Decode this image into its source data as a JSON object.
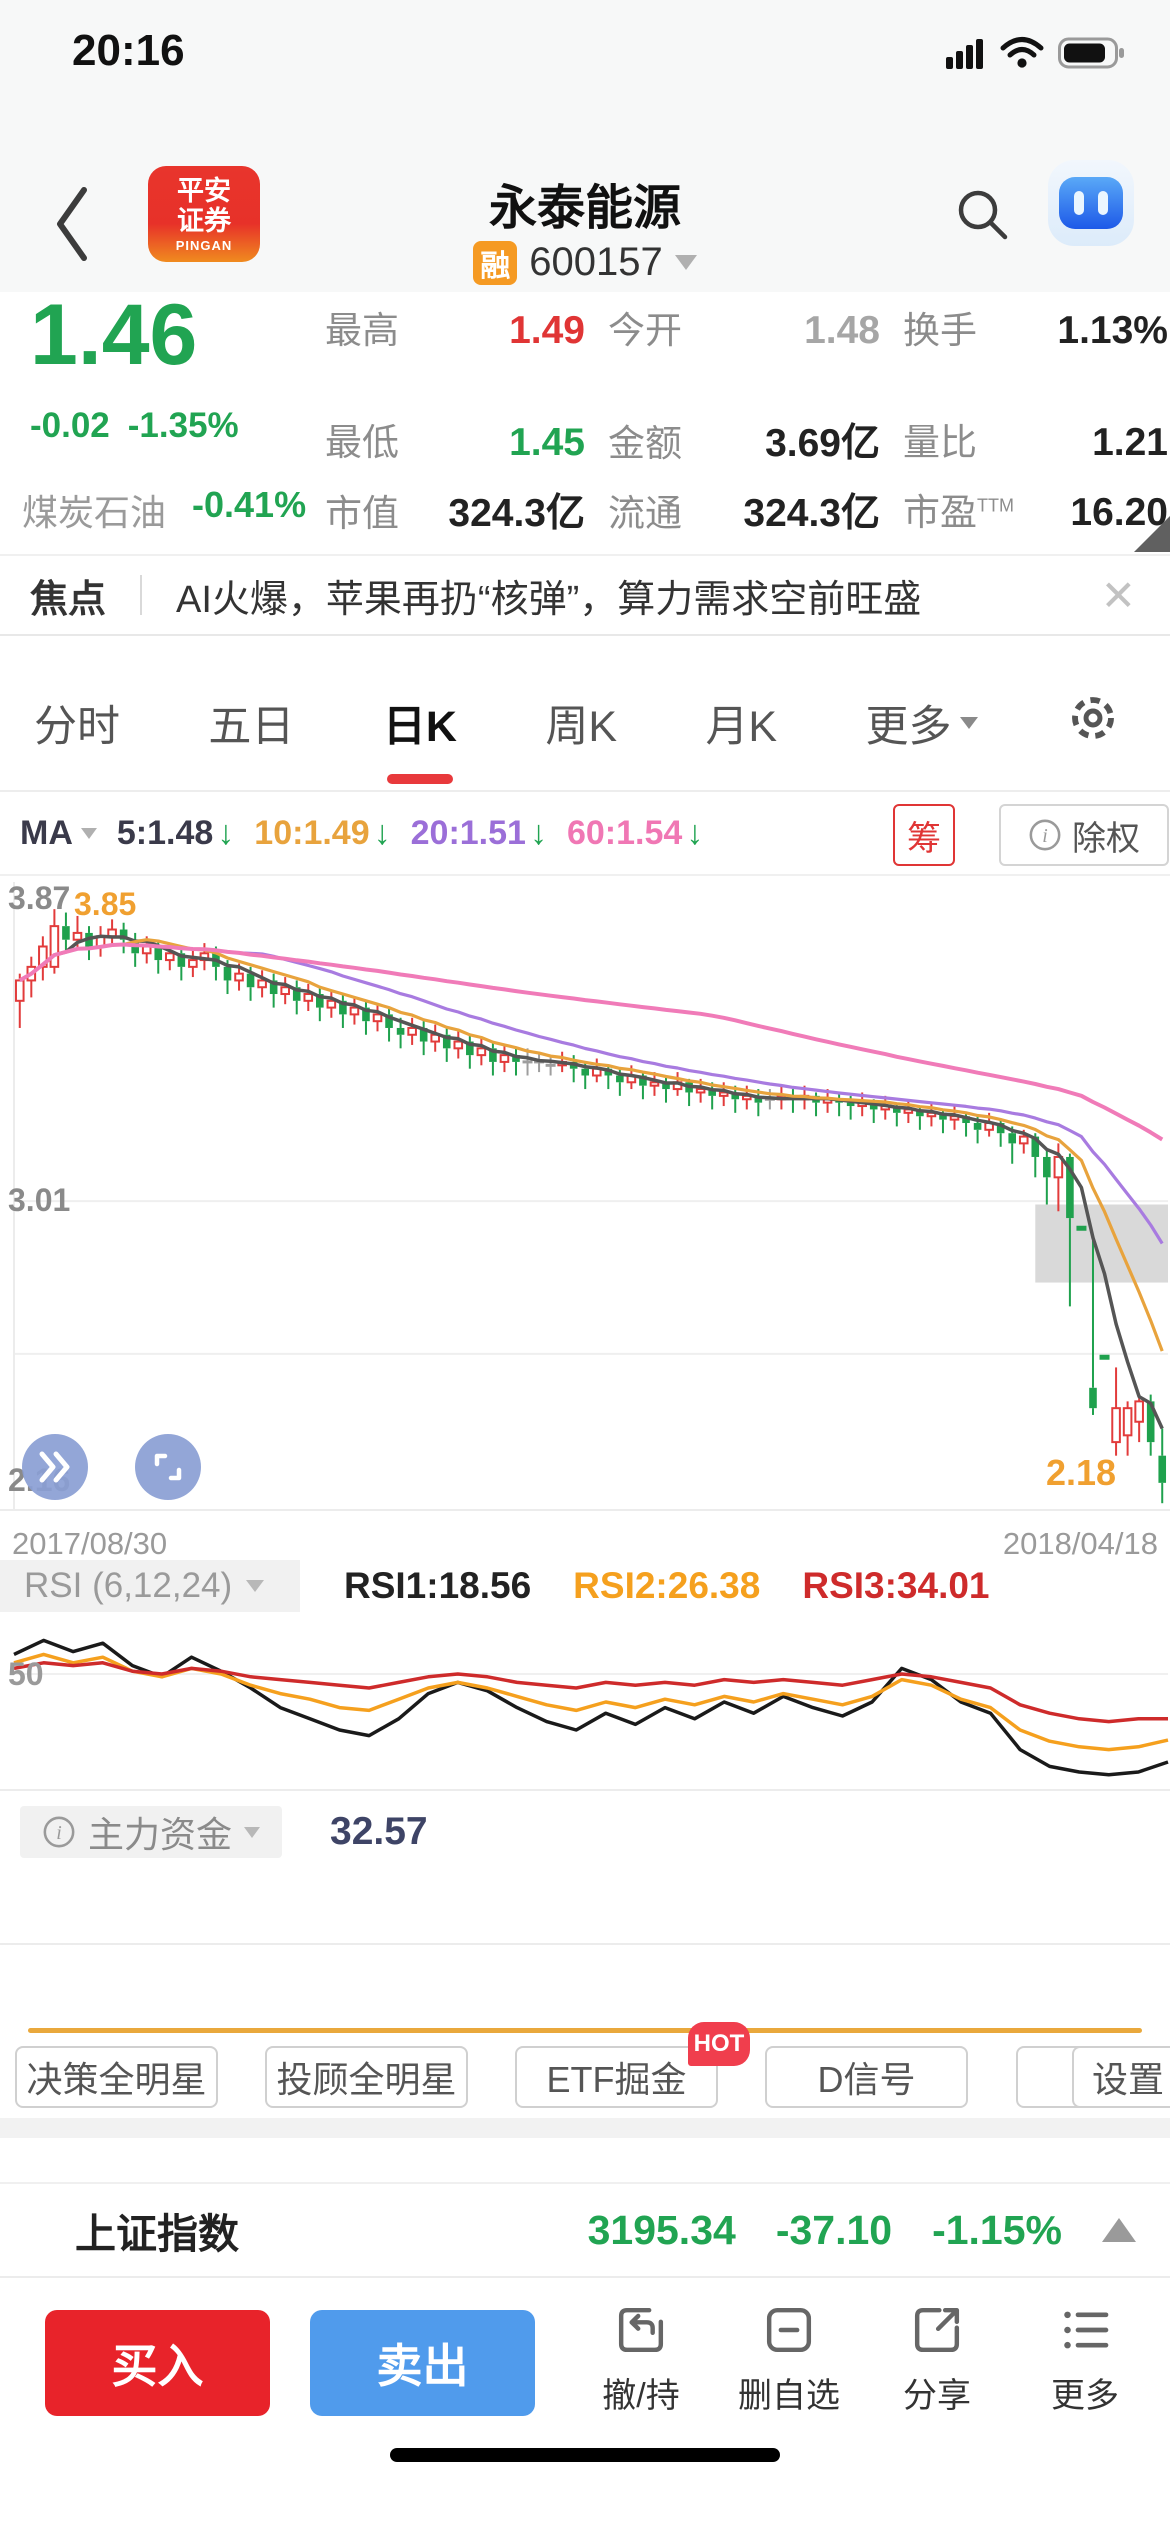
{
  "status_bar": {
    "time": "20:16"
  },
  "header": {
    "logo_line1": "平安",
    "logo_line2": "证券",
    "logo_sub": "PINGAN",
    "title": "永泰能源",
    "margin_badge": "融",
    "code": "600157"
  },
  "quote": {
    "price": "1.46",
    "change": "-0.02",
    "change_pct": "-1.35%",
    "price_color": "#21a452",
    "stats": [
      {
        "label": "最高",
        "value": "1.49",
        "color": "#e03535"
      },
      {
        "label": "今开",
        "value": "1.48",
        "color": "#a6a6a6"
      },
      {
        "label": "换手",
        "value": "1.13%",
        "color": "#222222"
      },
      {
        "label": "最低",
        "value": "1.45",
        "color": "#21a452"
      },
      {
        "label": "金额",
        "value": "3.69亿",
        "color": "#222222"
      },
      {
        "label": "量比",
        "value": "1.21",
        "color": "#222222"
      }
    ],
    "sector": {
      "name": "煤炭石油",
      "change": "-0.41%"
    },
    "row3": [
      {
        "label": "市值",
        "value": "324.3亿"
      },
      {
        "label": "流通",
        "value": "324.3亿"
      },
      {
        "label": "市盈",
        "sup": "TTM",
        "value": "16.20"
      }
    ]
  },
  "news": {
    "tag": "焦点",
    "headline": "AI火爆，苹果再扔“核弹”，算力需求空前旺盛",
    "close_icon": "✕"
  },
  "tabs": {
    "items": [
      "分时",
      "五日",
      "日K",
      "周K",
      "月K"
    ],
    "active": "日K",
    "more_label": "更多"
  },
  "ma_bar": {
    "label": "MA",
    "items": [
      {
        "text": "5:1.48",
        "color": "#3a3a4a"
      },
      {
        "text": "10:1.49",
        "color": "#e8a33d"
      },
      {
        "text": "20:1.51",
        "color": "#9b6fd8"
      },
      {
        "text": "60:1.54",
        "color": "#f077b4"
      }
    ],
    "down_arrow": "↓",
    "chip_label": "筹",
    "exright_label": "除权"
  },
  "chart_data": {
    "type": "candlestick",
    "title": "永泰能源 日K",
    "x_range": [
      "2017/08/30",
      "2018/04/18"
    ],
    "ylim": [
      2.1,
      3.95
    ],
    "gridlines": [
      3.01,
      2.56
    ],
    "y_labels": {
      "high": "3.87",
      "peak": "3.85",
      "mid": "3.01",
      "low": "2.16",
      "last": "2.18"
    },
    "colors": {
      "up": "#e23b3b",
      "down": "#1fa14d",
      "doji": "#9e9e9e"
    },
    "ma": [
      {
        "period": 5,
        "color": "#555555",
        "width": 3.5
      },
      {
        "period": 10,
        "color": "#e8a33d",
        "width": 3.2
      },
      {
        "period": 20,
        "color": "#a87be0",
        "width": 3.2
      },
      {
        "period": 60,
        "color": "#f07bb8",
        "width": 4
      }
    ],
    "halt_box": {
      "from_index": 88.5,
      "price_top": 3.0,
      "price_bottom": 2.77
    },
    "candles": [
      [
        3.6,
        3.68,
        3.52,
        3.66
      ],
      [
        3.66,
        3.73,
        3.61,
        3.7
      ],
      [
        3.7,
        3.79,
        3.66,
        3.76
      ],
      [
        3.7,
        3.87,
        3.68,
        3.82
      ],
      [
        3.82,
        3.86,
        3.74,
        3.78
      ],
      [
        3.78,
        3.85,
        3.75,
        3.8
      ],
      [
        3.8,
        3.82,
        3.72,
        3.76
      ],
      [
        3.76,
        3.82,
        3.73,
        3.79
      ],
      [
        3.79,
        3.84,
        3.76,
        3.81
      ],
      [
        3.81,
        3.83,
        3.74,
        3.78
      ],
      [
        3.78,
        3.8,
        3.7,
        3.74
      ],
      [
        3.74,
        3.79,
        3.71,
        3.76
      ],
      [
        3.76,
        3.78,
        3.68,
        3.72
      ],
      [
        3.72,
        3.77,
        3.69,
        3.74
      ],
      [
        3.74,
        3.76,
        3.66,
        3.7
      ],
      [
        3.7,
        3.75,
        3.67,
        3.72
      ],
      [
        3.72,
        3.77,
        3.69,
        3.74
      ],
      [
        3.74,
        3.76,
        3.66,
        3.7
      ],
      [
        3.7,
        3.72,
        3.62,
        3.66
      ],
      [
        3.66,
        3.71,
        3.63,
        3.68
      ],
      [
        3.68,
        3.7,
        3.6,
        3.64
      ],
      [
        3.64,
        3.69,
        3.61,
        3.66
      ],
      [
        3.66,
        3.68,
        3.58,
        3.62
      ],
      [
        3.62,
        3.67,
        3.59,
        3.64
      ],
      [
        3.64,
        3.66,
        3.56,
        3.6
      ],
      [
        3.6,
        3.65,
        3.57,
        3.62
      ],
      [
        3.62,
        3.64,
        3.54,
        3.58
      ],
      [
        3.58,
        3.63,
        3.55,
        3.6
      ],
      [
        3.6,
        3.62,
        3.52,
        3.56
      ],
      [
        3.56,
        3.61,
        3.53,
        3.58
      ],
      [
        3.58,
        3.6,
        3.5,
        3.54
      ],
      [
        3.54,
        3.59,
        3.51,
        3.56
      ],
      [
        3.56,
        3.58,
        3.48,
        3.52
      ],
      [
        3.52,
        3.55,
        3.46,
        3.5
      ],
      [
        3.5,
        3.55,
        3.47,
        3.52
      ],
      [
        3.52,
        3.54,
        3.44,
        3.48
      ],
      [
        3.48,
        3.53,
        3.45,
        3.5
      ],
      [
        3.5,
        3.52,
        3.42,
        3.46
      ],
      [
        3.46,
        3.51,
        3.43,
        3.48
      ],
      [
        3.48,
        3.5,
        3.4,
        3.44
      ],
      [
        3.44,
        3.49,
        3.41,
        3.46
      ],
      [
        3.46,
        3.48,
        3.38,
        3.42
      ],
      [
        3.42,
        3.47,
        3.39,
        3.44
      ],
      [
        3.44,
        3.46,
        3.38,
        3.42
      ],
      [
        3.42,
        3.46,
        3.38,
        3.42
      ],
      [
        3.42,
        3.45,
        3.39,
        3.42
      ],
      [
        3.41,
        3.44,
        3.38,
        3.41
      ],
      [
        3.41,
        3.45,
        3.39,
        3.42
      ],
      [
        3.42,
        3.44,
        3.36,
        3.4
      ],
      [
        3.4,
        3.42,
        3.34,
        3.38
      ],
      [
        3.38,
        3.43,
        3.36,
        3.4
      ],
      [
        3.4,
        3.41,
        3.34,
        3.38
      ],
      [
        3.38,
        3.4,
        3.32,
        3.36
      ],
      [
        3.36,
        3.41,
        3.34,
        3.38
      ],
      [
        3.38,
        3.39,
        3.31,
        3.35
      ],
      [
        3.35,
        3.39,
        3.32,
        3.36
      ],
      [
        3.36,
        3.38,
        3.3,
        3.34
      ],
      [
        3.34,
        3.39,
        3.32,
        3.36
      ],
      [
        3.36,
        3.37,
        3.29,
        3.33
      ],
      [
        3.33,
        3.37,
        3.3,
        3.34
      ],
      [
        3.34,
        3.36,
        3.28,
        3.32
      ],
      [
        3.32,
        3.36,
        3.29,
        3.33
      ],
      [
        3.33,
        3.35,
        3.27,
        3.31
      ],
      [
        3.31,
        3.35,
        3.28,
        3.32
      ],
      [
        3.32,
        3.34,
        3.26,
        3.3
      ],
      [
        3.31,
        3.34,
        3.28,
        3.31
      ],
      [
        3.31,
        3.35,
        3.28,
        3.32
      ],
      [
        3.32,
        3.34,
        3.27,
        3.31
      ],
      [
        3.31,
        3.35,
        3.28,
        3.32
      ],
      [
        3.32,
        3.33,
        3.26,
        3.3
      ],
      [
        3.3,
        3.34,
        3.27,
        3.31
      ],
      [
        3.31,
        3.33,
        3.26,
        3.3
      ],
      [
        3.3,
        3.32,
        3.25,
        3.29
      ],
      [
        3.29,
        3.33,
        3.26,
        3.3
      ],
      [
        3.3,
        3.31,
        3.24,
        3.28
      ],
      [
        3.28,
        3.32,
        3.25,
        3.29
      ],
      [
        3.29,
        3.3,
        3.23,
        3.27
      ],
      [
        3.27,
        3.31,
        3.24,
        3.28
      ],
      [
        3.28,
        3.29,
        3.22,
        3.26
      ],
      [
        3.26,
        3.3,
        3.23,
        3.27
      ],
      [
        3.27,
        3.28,
        3.21,
        3.25
      ],
      [
        3.25,
        3.29,
        3.22,
        3.26
      ],
      [
        3.26,
        3.27,
        3.2,
        3.24
      ],
      [
        3.24,
        3.26,
        3.18,
        3.22
      ],
      [
        3.22,
        3.27,
        3.2,
        3.24
      ],
      [
        3.24,
        3.25,
        3.17,
        3.21
      ],
      [
        3.21,
        3.23,
        3.12,
        3.18
      ],
      [
        3.18,
        3.22,
        3.15,
        3.2
      ],
      [
        3.2,
        3.21,
        3.08,
        3.14
      ],
      [
        3.14,
        3.16,
        3.0,
        3.08
      ],
      [
        3.08,
        3.18,
        2.98,
        3.14
      ],
      [
        3.14,
        3.15,
        2.7,
        2.96
      ],
      [
        2.93,
        2.93,
        2.93,
        2.93
      ],
      [
        2.46,
        2.9,
        2.38,
        2.4
      ],
      [
        2.55,
        2.55,
        2.55,
        2.55
      ],
      [
        2.3,
        2.52,
        2.26,
        2.4
      ],
      [
        2.32,
        2.42,
        2.26,
        2.4
      ],
      [
        2.36,
        2.44,
        2.3,
        2.42
      ],
      [
        2.42,
        2.44,
        2.26,
        2.3
      ],
      [
        2.26,
        2.34,
        2.12,
        2.18
      ]
    ],
    "rsi_chart": {
      "ylim": [
        10,
        70
      ],
      "gridline": 50,
      "series": [
        {
          "name": "RSI1",
          "color": "#1a1a1a",
          "values": [
            57,
            62,
            58,
            61,
            53,
            49,
            56,
            51,
            45,
            38,
            34,
            30,
            28,
            34,
            43,
            47,
            44,
            38,
            33,
            30,
            36,
            32,
            38,
            34,
            40,
            36,
            42,
            38,
            35,
            40,
            52,
            48,
            40,
            36,
            23,
            17,
            15,
            14,
            15,
            18.56
          ]
        },
        {
          "name": "RSI2",
          "color": "#f5a01e",
          "values": [
            54,
            57,
            54,
            56,
            51,
            49,
            52,
            50,
            46,
            43,
            41,
            38,
            37,
            41,
            45,
            47,
            45,
            42,
            39,
            37,
            40,
            38,
            41,
            39,
            42,
            40,
            43,
            41,
            39,
            42,
            48,
            46,
            41,
            38,
            30,
            26,
            24,
            23,
            24,
            26.38
          ]
        },
        {
          "name": "RSI3",
          "color": "#ce2b2b",
          "values": [
            52,
            54,
            53,
            54,
            51,
            50,
            52,
            51,
            49,
            48,
            47,
            46,
            45,
            47,
            49,
            50,
            49,
            47,
            46,
            45,
            47,
            46,
            47,
            46,
            48,
            47,
            48,
            47,
            46,
            48,
            50,
            49,
            47,
            45,
            39,
            36,
            34,
            33,
            34,
            34.01
          ]
        }
      ]
    }
  },
  "rsi_header": {
    "selector": "RSI (6,12,24)",
    "values": [
      {
        "text": "RSI1:18.56",
        "color": "#222222"
      },
      {
        "text": "RSI2:26.38",
        "color": "#f5a01e"
      },
      {
        "text": "RSI3:34.01",
        "color": "#ce2b2b"
      }
    ],
    "fifty_label": "50"
  },
  "main_funds": {
    "label": "主力资金",
    "value": "32.57"
  },
  "footer_tools": {
    "buttons": [
      "决策全明星",
      "投顾全明星",
      "ETF掘金",
      "D信号",
      "设置"
    ],
    "hot_badge": "HOT"
  },
  "index_bar": {
    "name": "上证指数",
    "value": "3195.34",
    "change": "-37.10",
    "change_pct": "-1.15%",
    "color": "#21a452"
  },
  "action_bar": {
    "buy": "买入",
    "sell": "卖出",
    "items": [
      "撤/持",
      "删自选",
      "分享",
      "更多"
    ],
    "buy_color": "#e8232a",
    "sell_color": "#509bec"
  }
}
